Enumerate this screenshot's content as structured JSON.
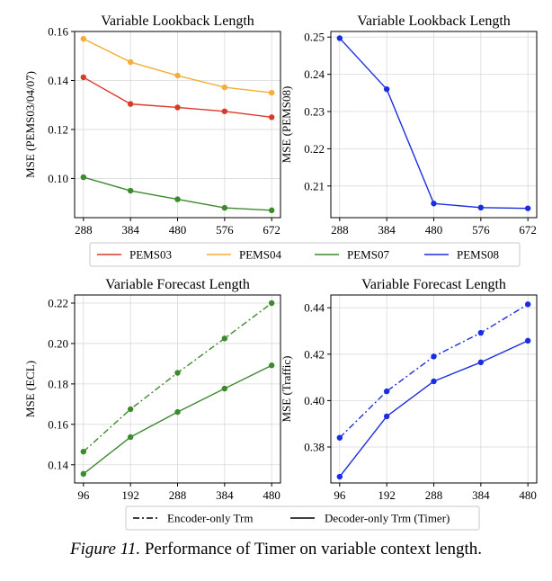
{
  "caption": {
    "label": "Figure 11.",
    "text": "Performance of Timer on variable context length."
  },
  "colors": {
    "PEMS03": "#d93a2b",
    "PEMS04": "#f5ac38",
    "PEMS07": "#3d8a2e",
    "PEMS08": "#1a2ee0"
  },
  "legend_top": {
    "entries": [
      {
        "name": "PEMS03",
        "color": "#d93a2b"
      },
      {
        "name": "PEMS04",
        "color": "#f5ac38"
      },
      {
        "name": "PEMS07",
        "color": "#3d8a2e"
      },
      {
        "name": "PEMS08",
        "color": "#1a2ee0"
      }
    ]
  },
  "legend_bottom": {
    "entries": [
      {
        "name": "Encoder-only Trm",
        "style": "dashdot"
      },
      {
        "name": "Decoder-only Trm (Timer)",
        "style": "solid"
      }
    ]
  },
  "chart_data": [
    {
      "type": "line",
      "title": "Variable Lookback Length",
      "xlabel": "",
      "ylabel": "MSE (PEMS03/04/07)",
      "x": [
        288,
        384,
        480,
        576,
        672
      ],
      "xlim": [
        270,
        690
      ],
      "ylim": [
        0.084,
        0.16
      ],
      "yticks": [
        0.1,
        0.12,
        0.14,
        0.16
      ],
      "ytick_labels": [
        "0.10",
        "0.12",
        "0.14",
        "0.16"
      ],
      "grid": true,
      "series": [
        {
          "name": "PEMS03",
          "color": "#d93a2b",
          "style": "solid",
          "values": [
            0.1413,
            0.1304,
            0.129,
            0.1274,
            0.125
          ]
        },
        {
          "name": "PEMS04",
          "color": "#f5ac38",
          "style": "solid",
          "values": [
            0.157,
            0.1475,
            0.142,
            0.1372,
            0.135
          ]
        },
        {
          "name": "PEMS07",
          "color": "#3d8a2e",
          "style": "solid",
          "values": [
            0.1005,
            0.095,
            0.0915,
            0.088,
            0.087
          ]
        }
      ]
    },
    {
      "type": "line",
      "title": "Variable Lookback Length",
      "xlabel": "",
      "ylabel": "MSE (PEMS08)",
      "x": [
        288,
        384,
        480,
        576,
        672
      ],
      "xlim": [
        270,
        690
      ],
      "ylim": [
        0.2015,
        0.2515
      ],
      "yticks": [
        0.21,
        0.22,
        0.23,
        0.24,
        0.25
      ],
      "ytick_labels": [
        "0.21",
        "0.22",
        "0.23",
        "0.24",
        "0.25"
      ],
      "grid": true,
      "series": [
        {
          "name": "PEMS08",
          "color": "#1a2ee0",
          "style": "solid",
          "values": [
            0.2497,
            0.236,
            0.2053,
            0.2042,
            0.204
          ]
        }
      ]
    },
    {
      "type": "line",
      "title": "Variable Forecast Length",
      "xlabel": "",
      "ylabel": "MSE (ECL)",
      "x": [
        96,
        192,
        288,
        384,
        480
      ],
      "xlim": [
        78,
        498
      ],
      "ylim": [
        0.131,
        0.224
      ],
      "yticks": [
        0.14,
        0.16,
        0.18,
        0.2,
        0.22
      ],
      "ytick_labels": [
        "0.14",
        "0.16",
        "0.18",
        "0.20",
        "0.22"
      ],
      "grid": true,
      "series": [
        {
          "name": "Encoder-only Trm",
          "color": "#3d8a2e",
          "style": "dashdot",
          "values": [
            0.1465,
            0.1675,
            0.1855,
            0.2025,
            0.22
          ]
        },
        {
          "name": "Decoder-only Trm (Timer)",
          "color": "#3d8a2e",
          "style": "solid",
          "values": [
            0.1355,
            0.1537,
            0.1661,
            0.1777,
            0.1892
          ]
        }
      ]
    },
    {
      "type": "line",
      "title": "Variable Forecast Length",
      "xlabel": "",
      "ylabel": "MSE (Traffic)",
      "x": [
        96,
        192,
        288,
        384,
        480
      ],
      "xlim": [
        78,
        498
      ],
      "ylim": [
        0.3645,
        0.4455
      ],
      "yticks": [
        0.38,
        0.4,
        0.42,
        0.44
      ],
      "ytick_labels": [
        "0.38",
        "0.40",
        "0.42",
        "0.44"
      ],
      "grid": true,
      "series": [
        {
          "name": "Encoder-only Trm",
          "color": "#1a2ee0",
          "style": "dashdot",
          "values": [
            0.384,
            0.404,
            0.419,
            0.4292,
            0.4415
          ]
        },
        {
          "name": "Decoder-only Trm (Timer)",
          "color": "#1a2ee0",
          "style": "solid",
          "values": [
            0.3672,
            0.3932,
            0.4083,
            0.4165,
            0.4258
          ]
        }
      ]
    }
  ]
}
